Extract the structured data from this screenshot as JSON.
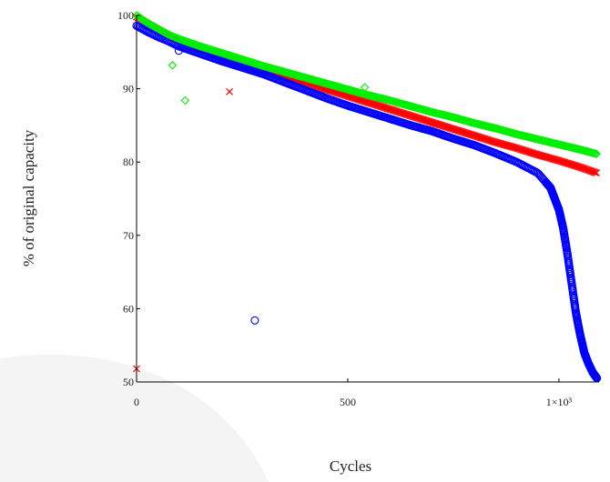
{
  "chart_data": {
    "type": "scatter",
    "title": "",
    "xlabel": "Cycles",
    "ylabel": "% of original capacity",
    "xlim": [
      0,
      1095
    ],
    "ylim": [
      50,
      100
    ],
    "x_ticks": [
      {
        "value": 0,
        "label": "0"
      },
      {
        "value": 500,
        "label": "500"
      },
      {
        "value": 1000,
        "label": "1×10³"
      }
    ],
    "y_ticks": [
      {
        "value": 50,
        "label": "50"
      },
      {
        "value": 60,
        "label": "60"
      },
      {
        "value": 70,
        "label": "70"
      },
      {
        "value": 80,
        "label": "80"
      },
      {
        "value": 90,
        "label": "90"
      },
      {
        "value": 100,
        "label": "100"
      }
    ],
    "grid": false,
    "legend": "none",
    "series": [
      {
        "color": "#ff0000",
        "marker": "x",
        "x": [
          0,
          25,
          50,
          75,
          100,
          150,
          200,
          250,
          300,
          350,
          400,
          450,
          500,
          550,
          600,
          650,
          700,
          750,
          800,
          850,
          900,
          950,
          1000,
          1050,
          1090
        ],
        "y": [
          99.8,
          98.9,
          98.1,
          97.3,
          96.6,
          95.4,
          94.3,
          93.3,
          92.4,
          91.6,
          90.8,
          89.9,
          89.0,
          88.1,
          87.2,
          86.3,
          85.4,
          84.5,
          83.6,
          82.7,
          81.9,
          81.0,
          80.2,
          79.3,
          78.5
        ],
        "outliers": {
          "x": [
            0,
            220
          ],
          "y": [
            51.8,
            89.6
          ]
        }
      },
      {
        "color": "#00ee00",
        "marker": "diamond",
        "x": [
          0,
          25,
          50,
          75,
          100,
          150,
          200,
          250,
          300,
          350,
          400,
          450,
          500,
          550,
          600,
          650,
          700,
          750,
          800,
          850,
          900,
          950,
          1000,
          1050,
          1090
        ],
        "y": [
          100.0,
          99.0,
          98.2,
          97.4,
          96.8,
          95.8,
          94.9,
          94.0,
          93.1,
          92.3,
          91.5,
          90.7,
          89.9,
          89.1,
          88.4,
          87.6,
          86.8,
          86.1,
          85.3,
          84.6,
          83.8,
          83.1,
          82.4,
          81.7,
          81.1
        ],
        "outliers": {
          "x": [
            85,
            115,
            540
          ],
          "y": [
            93.2,
            88.4,
            90.2
          ]
        }
      },
      {
        "color": "#0000ff",
        "marker": "circle",
        "x": [
          0,
          25,
          50,
          75,
          100,
          150,
          200,
          250,
          300,
          350,
          400,
          450,
          500,
          550,
          600,
          650,
          700,
          750,
          800,
          850,
          900,
          950,
          980,
          1000,
          1010,
          1020,
          1030,
          1040,
          1050,
          1060,
          1070,
          1080,
          1090
        ],
        "y": [
          98.6,
          97.8,
          97.1,
          96.5,
          95.8,
          94.8,
          93.8,
          92.9,
          92.0,
          90.9,
          89.8,
          88.7,
          87.7,
          86.8,
          85.9,
          85.0,
          84.2,
          83.2,
          82.3,
          81.2,
          80.0,
          78.5,
          76.5,
          73.5,
          71.0,
          67.5,
          63.5,
          59.5,
          56.5,
          54.0,
          52.5,
          51.3,
          50.5
        ],
        "outliers": {
          "x": [
            100,
            280
          ],
          "y": [
            95.2,
            58.4
          ]
        }
      }
    ]
  }
}
